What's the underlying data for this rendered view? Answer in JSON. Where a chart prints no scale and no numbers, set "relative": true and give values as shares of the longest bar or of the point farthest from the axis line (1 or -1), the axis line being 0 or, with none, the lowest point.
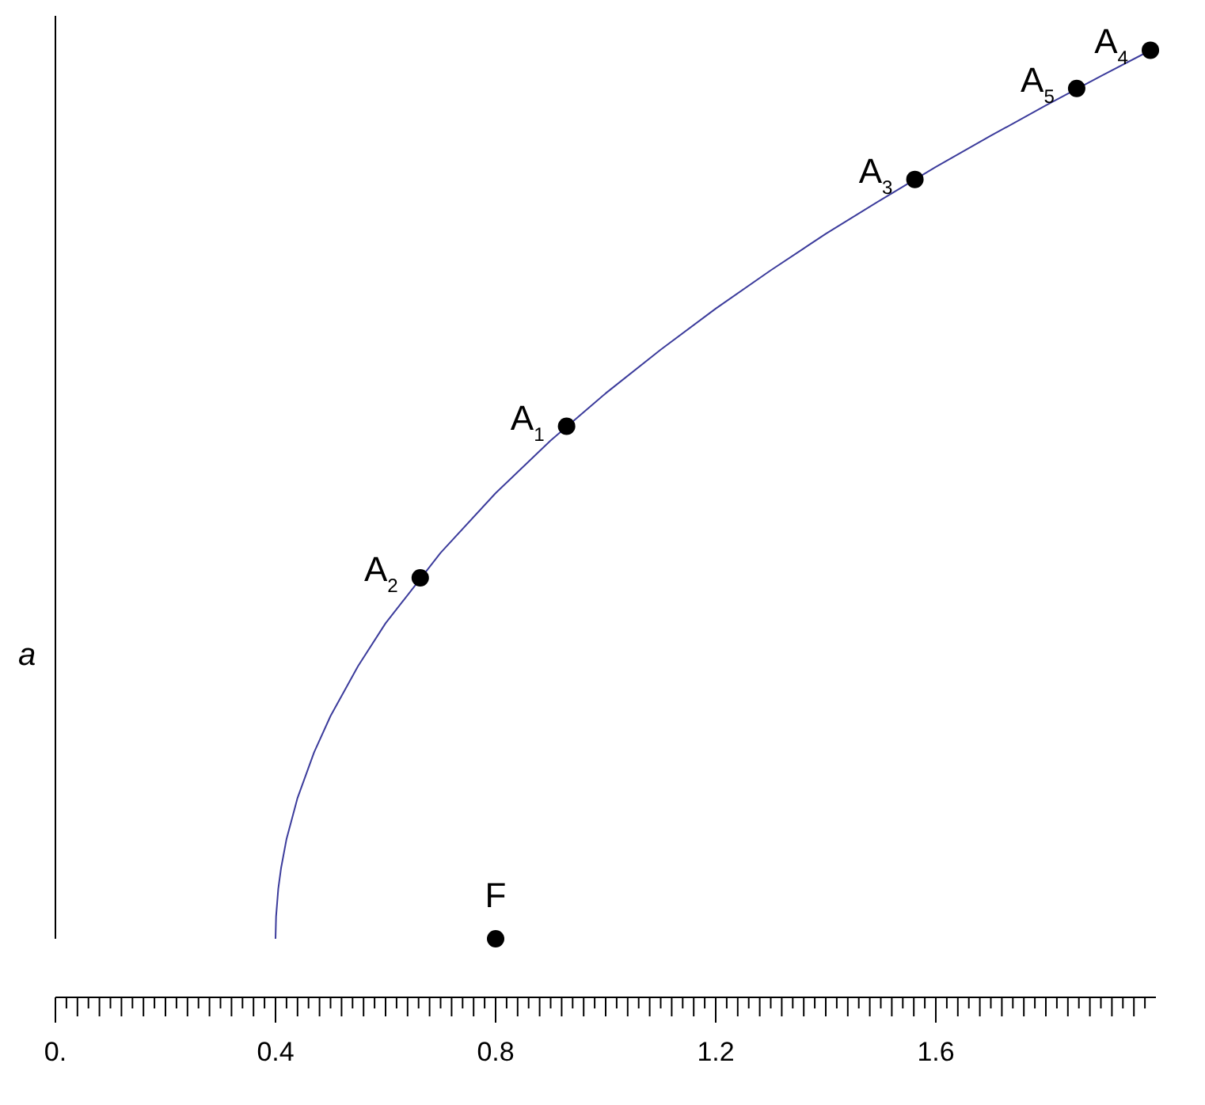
{
  "chart_data": {
    "type": "scatter",
    "relative": true,
    "ylabel": "a",
    "xlim": [
      0,
      2.0
    ],
    "xticks": [
      {
        "value": 0,
        "label": "0."
      },
      0.4,
      0.8,
      1.2,
      1.6
    ],
    "grid": false,
    "tick_labels": "x",
    "series": [
      {
        "type": "line",
        "color": "#3c3c9c",
        "line_style": "solid",
        "marker": "none",
        "x": [
          0.4,
          0.401,
          0.405,
          0.41,
          0.42,
          0.44,
          0.47,
          0.5,
          0.55,
          0.6,
          0.7,
          0.8,
          0.9,
          1.0,
          1.1,
          1.2,
          1.3,
          1.4,
          1.5,
          1.6,
          1.7,
          1.8,
          1.9,
          2.0
        ],
        "values": [
          0,
          0.025,
          0.056,
          0.079,
          0.112,
          0.158,
          0.209,
          0.25,
          0.306,
          0.354,
          0.433,
          0.5,
          0.559,
          0.612,
          0.661,
          0.707,
          0.75,
          0.791,
          0.829,
          0.866,
          0.901,
          0.935,
          0.968,
          1.0
        ]
      },
      {
        "color": "#000000",
        "marker": "circle",
        "x": [
          0.929,
          0.663,
          1.562,
          1.99,
          1.856,
          0.8
        ],
        "values": [
          0.575,
          0.405,
          0.852,
          0.997,
          0.954,
          0
        ]
      }
    ],
    "annotations": [
      {
        "text": "A$_{1}$",
        "x": 0.929,
        "y": 0.575
      },
      {
        "text": "A$_{2}$",
        "x": 0.663,
        "y": 0.405
      },
      {
        "text": "A$_{3}$",
        "x": 1.562,
        "y": 0.852
      },
      {
        "text": "A$_{4}$",
        "x": 1.99,
        "y": 0.997
      },
      {
        "text": "A$_{5}$",
        "x": 1.856,
        "y": 0.954
      },
      {
        "text": "F",
        "x": 0.8,
        "y": 0
      }
    ]
  }
}
